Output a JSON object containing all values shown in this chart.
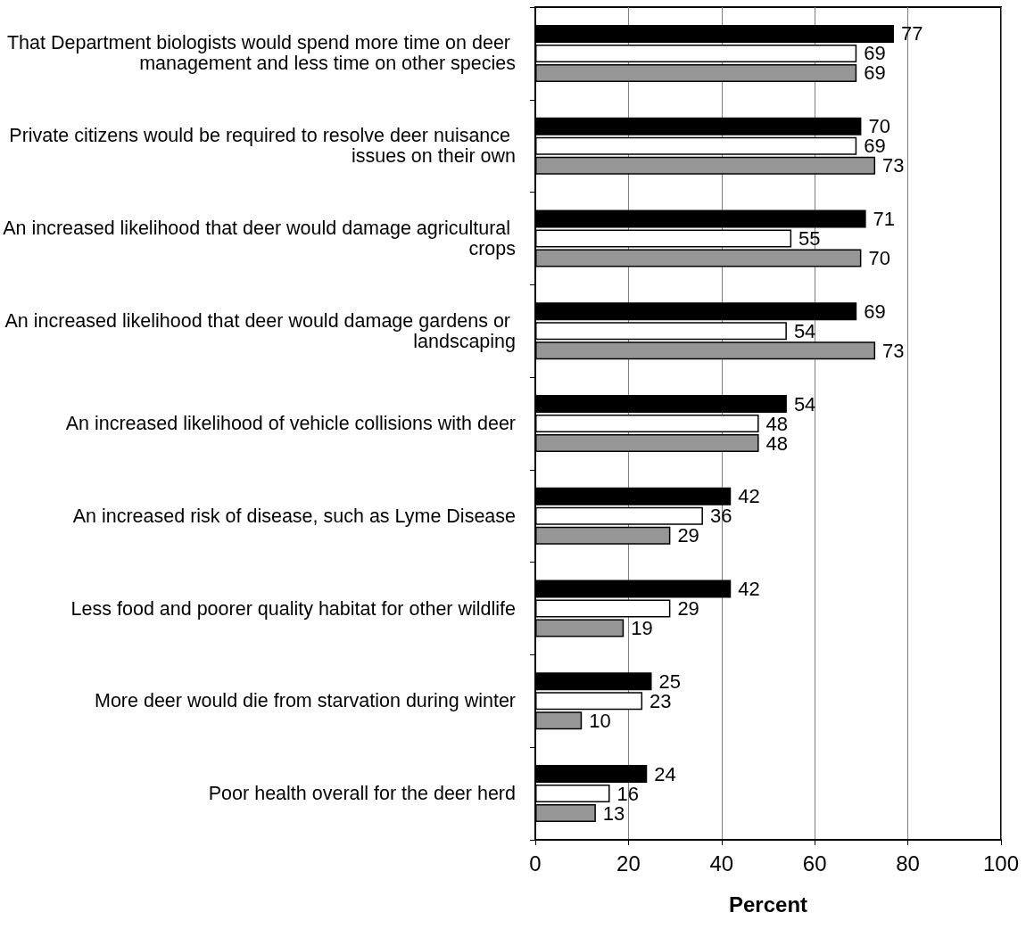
{
  "chart_data": {
    "type": "bar",
    "orientation": "horizontal",
    "xlabel": "Percent",
    "categories": [
      "That Department biologists would spend more time on deer management and less time on other species",
      "Private citizens would be required to resolve deer nuisance issues on their own",
      "An increased likelihood that deer would damage agricultural crops",
      "An increased likelihood that deer would damage gardens or landscaping",
      "An increased likelihood of vehicle collisions with deer",
      "An increased risk of disease, such as Lyme Disease",
      "Less food and poorer quality habitat for other wildlife",
      "More deer would die from starvation during winter",
      "Poor health overall for the deer herd"
    ],
    "series": [
      {
        "color": "#000000",
        "values": [
          77,
          70,
          71,
          69,
          54,
          42,
          42,
          25,
          24
        ]
      },
      {
        "color": "#ffffff",
        "values": [
          69,
          69,
          55,
          54,
          48,
          36,
          29,
          23,
          16
        ]
      },
      {
        "color": "#969696",
        "values": [
          69,
          73,
          70,
          73,
          48,
          29,
          19,
          10,
          13
        ]
      }
    ],
    "xlim": [
      0,
      100
    ],
    "xticks": [
      0,
      20,
      40,
      60,
      80,
      100
    ],
    "grid": "x",
    "data_labels": true
  }
}
